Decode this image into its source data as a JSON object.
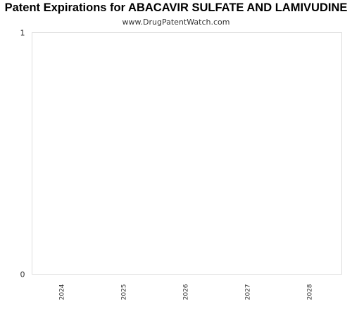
{
  "chart_data": {
    "type": "bar",
    "title": "Patent Expirations for ABACAVIR SULFATE AND LAMIVUDINE",
    "subtitle": "www.DrugPatentWatch.com",
    "categories": [
      "2024",
      "2025",
      "2026",
      "2027",
      "2028"
    ],
    "values": [
      0,
      0,
      0,
      0,
      0
    ],
    "xlabel": "",
    "ylabel": "",
    "ylim": [
      0,
      1
    ],
    "yticks": [
      "0",
      "1"
    ],
    "grid": false,
    "legend": "none",
    "colors": {
      "frame": "#dddddd",
      "text": "#333333",
      "bar": "#4e79a7"
    }
  }
}
